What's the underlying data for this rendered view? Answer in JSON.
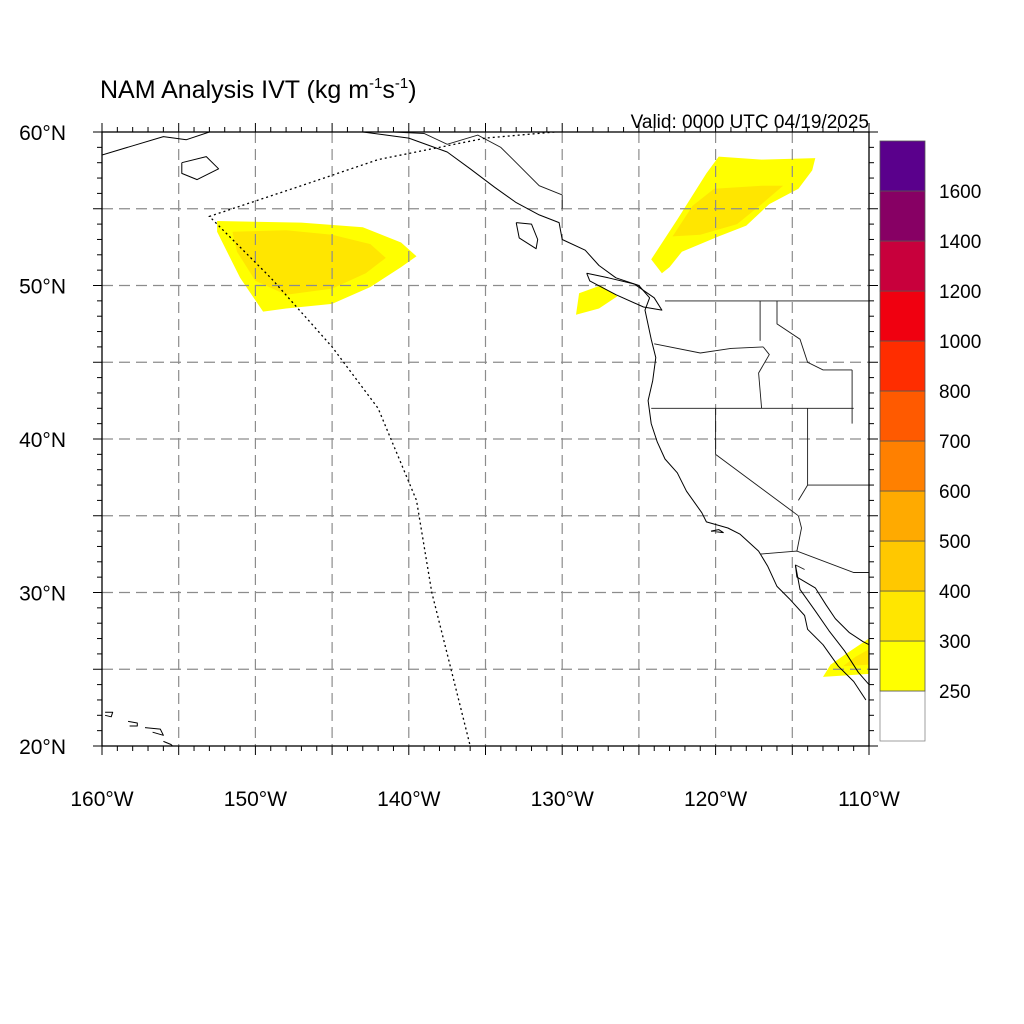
{
  "title": {
    "main": "NAM Analysis IVT (kg m",
    "sup1": "-1",
    "mid": "s",
    "sup2": "-1",
    "end": ")"
  },
  "valid_label": "Valid: 0000 UTC 04/19/2025",
  "map": {
    "lon_range": [
      -160,
      -110
    ],
    "lat_range": [
      20,
      60
    ],
    "lon_ticks": [
      {
        "lon": -160,
        "label": "160°W"
      },
      {
        "lon": -150,
        "label": "150°W"
      },
      {
        "lon": -140,
        "label": "140°W"
      },
      {
        "lon": -130,
        "label": "130°W"
      },
      {
        "lon": -120,
        "label": "120°W"
      },
      {
        "lon": -110,
        "label": "110°W"
      }
    ],
    "lat_ticks": [
      {
        "lat": 20,
        "label": "20°N"
      },
      {
        "lat": 30,
        "label": "30°N"
      },
      {
        "lat": 40,
        "label": "40°N"
      },
      {
        "lat": 50,
        "label": "50°N"
      },
      {
        "lat": 60,
        "label": "60°N"
      }
    ],
    "grid_lons": [
      -155,
      -150,
      -145,
      -140,
      -135,
      -130,
      -125,
      -120,
      -115
    ],
    "grid_lats": [
      25,
      30,
      35,
      40,
      45,
      50,
      55
    ],
    "gridlines": true
  },
  "colorbar": {
    "levels": [
      {
        "label": "250",
        "color": "#ffff00"
      },
      {
        "label": "300",
        "color": "#ffe600"
      },
      {
        "label": "400",
        "color": "#ffc800"
      },
      {
        "label": "500",
        "color": "#ffaa00"
      },
      {
        "label": "600",
        "color": "#ff8000"
      },
      {
        "label": "700",
        "color": "#ff5a00"
      },
      {
        "label": "800",
        "color": "#ff2d00"
      },
      {
        "label": "1000",
        "color": "#f00010"
      },
      {
        "label": "1200",
        "color": "#c8003c"
      },
      {
        "label": "1400",
        "color": "#870064"
      },
      {
        "label": "1600",
        "color": "#5a008c"
      }
    ],
    "below_color": "#ffffff"
  },
  "ivt_areas": [
    {
      "name": "northeast-pacific-plume",
      "level": 0,
      "poly": [
        [
          -152.5,
          54.2
        ],
        [
          -147,
          54.1
        ],
        [
          -143,
          53.8
        ],
        [
          -140.5,
          52.8
        ],
        [
          -139.5,
          51.9
        ],
        [
          -140.5,
          51.2
        ],
        [
          -142.5,
          49.9
        ],
        [
          -145,
          48.8
        ],
        [
          -148,
          48.5
        ],
        [
          -149.5,
          48.3
        ],
        [
          -151,
          50.5
        ],
        [
          -152.5,
          53.5
        ]
      ]
    },
    {
      "name": "northeast-pacific-plume-core",
      "level": 1,
      "poly": [
        [
          -151.5,
          53.5
        ],
        [
          -148,
          53.6
        ],
        [
          -145,
          53.3
        ],
        [
          -142.5,
          52.7
        ],
        [
          -141.5,
          51.8
        ],
        [
          -142.8,
          50.8
        ],
        [
          -145,
          49.8
        ],
        [
          -148,
          49.4
        ],
        [
          -150,
          50.3
        ],
        [
          -151.2,
          52.2
        ]
      ]
    },
    {
      "name": "bc-interior-plume",
      "level": 0,
      "poly": [
        [
          -124.2,
          51.7
        ],
        [
          -122.5,
          54.3
        ],
        [
          -120.6,
          57.3
        ],
        [
          -119.8,
          58.4
        ],
        [
          -117,
          58.2
        ],
        [
          -113.5,
          58.3
        ],
        [
          -113.7,
          57.5
        ],
        [
          -114.6,
          56.3
        ],
        [
          -116.5,
          55.3
        ],
        [
          -118,
          53.9
        ],
        [
          -119.8,
          53.2
        ],
        [
          -122.2,
          52.2
        ],
        [
          -123,
          51.2
        ],
        [
          -123.5,
          50.8
        ]
      ]
    },
    {
      "name": "bc-interior-plume-core",
      "level": 1,
      "poly": [
        [
          -122.8,
          53.2
        ],
        [
          -121.5,
          55.2
        ],
        [
          -120.1,
          56.3
        ],
        [
          -117,
          56.5
        ],
        [
          -115.6,
          56.5
        ],
        [
          -117,
          55.3
        ],
        [
          -118.6,
          54
        ],
        [
          -121,
          53.3
        ]
      ]
    },
    {
      "name": "vancouver-island-plume",
      "level": 0,
      "poly": [
        [
          -129.1,
          48.1
        ],
        [
          -127.6,
          48.5
        ],
        [
          -126.4,
          49.3
        ],
        [
          -127.5,
          50
        ],
        [
          -128.9,
          49.5
        ]
      ]
    },
    {
      "name": "gulf-california-plume",
      "level": 0,
      "poly": [
        [
          -113,
          24.5
        ],
        [
          -110,
          24.7
        ],
        [
          -110,
          27
        ],
        [
          -111.5,
          26
        ],
        [
          -112.5,
          25.3
        ]
      ]
    },
    {
      "name": "gulf-california-plume-core",
      "level": 1,
      "poly": [
        [
          -111.7,
          25.2
        ],
        [
          -110,
          25.3
        ],
        [
          -110,
          26.3
        ],
        [
          -110.9,
          25.8
        ]
      ]
    }
  ],
  "coastlines": [
    {
      "name": "north-america-west-coast",
      "pts": [
        [
          -148,
          60
        ],
        [
          -146,
          60.2
        ],
        [
          -143,
          60
        ],
        [
          -140,
          59.6
        ],
        [
          -137.5,
          58.7
        ],
        [
          -136,
          57.6
        ],
        [
          -134.4,
          56.4
        ],
        [
          -133,
          55.4
        ],
        [
          -131.5,
          54.6
        ],
        [
          -130.2,
          54.1
        ],
        [
          -130,
          53
        ],
        [
          -128.5,
          52.3
        ],
        [
          -127.6,
          51.3
        ],
        [
          -126.5,
          50.5
        ],
        [
          -125,
          50
        ],
        [
          -124.3,
          49.2
        ],
        [
          -124.6,
          48.4
        ],
        [
          -124.2,
          46.5
        ],
        [
          -123.9,
          45.3
        ],
        [
          -124.1,
          43.8
        ],
        [
          -124.4,
          42.5
        ],
        [
          -124.2,
          41
        ],
        [
          -123.8,
          39.8
        ],
        [
          -123.3,
          38.7
        ],
        [
          -122.5,
          37.8
        ],
        [
          -121.9,
          36.6
        ],
        [
          -120.9,
          35.2
        ],
        [
          -120.6,
          34.6
        ],
        [
          -119.2,
          34.2
        ],
        [
          -118.4,
          33.8
        ],
        [
          -117.2,
          32.7
        ],
        [
          -116.6,
          31.7
        ],
        [
          -116,
          30.4
        ],
        [
          -115.2,
          29.6
        ],
        [
          -114.2,
          28.5
        ],
        [
          -114,
          27.6
        ],
        [
          -113,
          26.6
        ],
        [
          -112,
          25.2
        ],
        [
          -111,
          24.2
        ],
        [
          -110.2,
          23
        ]
      ]
    },
    {
      "name": "gulf-of-california-east-coast",
      "pts": [
        [
          -114.8,
          31.8
        ],
        [
          -114.7,
          31
        ],
        [
          -113.5,
          30.3
        ],
        [
          -112.8,
          29.2
        ],
        [
          -112.2,
          28.3
        ],
        [
          -111.3,
          27.4
        ],
        [
          -110.4,
          26.8
        ],
        [
          -110,
          26.6
        ]
      ]
    },
    {
      "name": "baja-east-coast",
      "pts": [
        [
          -114.8,
          31.8
        ],
        [
          -114.5,
          30.2
        ],
        [
          -113.5,
          28.8
        ],
        [
          -112.6,
          27.5
        ],
        [
          -111.6,
          26.2
        ],
        [
          -110.7,
          24.8
        ],
        [
          -110,
          24
        ]
      ]
    },
    {
      "name": "alaska-peninsula",
      "pts": [
        [
          -160,
          58.5
        ],
        [
          -158,
          59.1
        ],
        [
          -156,
          59.7
        ],
        [
          -154.5,
          59.5
        ],
        [
          -153,
          60
        ]
      ]
    },
    {
      "name": "kodiak-island",
      "pts": [
        [
          -154.8,
          58
        ],
        [
          -153.2,
          58.4
        ],
        [
          -152.4,
          57.6
        ],
        [
          -153.8,
          56.9
        ],
        [
          -154.8,
          57.3
        ],
        [
          -154.8,
          58
        ]
      ]
    },
    {
      "name": "haida-gwaii",
      "pts": [
        [
          -133,
          54.1
        ],
        [
          -132,
          54
        ],
        [
          -131.6,
          53
        ],
        [
          -131.7,
          52.4
        ],
        [
          -132.8,
          53.1
        ],
        [
          -133,
          54.1
        ]
      ]
    },
    {
      "name": "vancouver-island",
      "pts": [
        [
          -128.4,
          50.8
        ],
        [
          -127,
          50.5
        ],
        [
          -125.3,
          50.1
        ],
        [
          -124,
          49.2
        ],
        [
          -123.5,
          48.4
        ],
        [
          -124.7,
          48.6
        ],
        [
          -126.5,
          49.4
        ],
        [
          -128.2,
          50.3
        ],
        [
          -128.4,
          50.8
        ]
      ]
    },
    {
      "name": "channel-islands",
      "pts": [
        [
          -120.3,
          34
        ],
        [
          -119.5,
          33.9
        ],
        [
          -119.8,
          34.1
        ],
        [
          -120.3,
          34
        ]
      ]
    },
    {
      "name": "hawaii-niihau-kauai",
      "pts": [
        [
          -159.8,
          22.2
        ],
        [
          -159.3,
          22.2
        ],
        [
          -159.4,
          21.9
        ],
        [
          -159.8,
          22
        ]
      ]
    },
    {
      "name": "hawaii-oahu",
      "pts": [
        [
          -158.3,
          21.6
        ],
        [
          -157.7,
          21.5
        ],
        [
          -157.7,
          21.3
        ],
        [
          -158.2,
          21.3
        ]
      ]
    },
    {
      "name": "hawaii-molokai-maui",
      "pts": [
        [
          -157.2,
          21.2
        ],
        [
          -156.2,
          21.1
        ],
        [
          -156,
          20.7
        ],
        [
          -156.7,
          20.9
        ]
      ]
    },
    {
      "name": "hawaii-big-island",
      "pts": [
        [
          -156,
          20.3
        ],
        [
          -155.5,
          20.1
        ],
        [
          -155.1,
          19.7
        ],
        [
          -154.8,
          19.5
        ],
        [
          -155.6,
          19
        ],
        [
          -156,
          19.6
        ]
      ]
    }
  ],
  "borders": [
    {
      "name": "us-canada-border",
      "pts": [
        [
          -123.3,
          49
        ],
        [
          -110,
          49
        ]
      ]
    },
    {
      "name": "alaska-canada-border",
      "pts": [
        [
          -141,
          60
        ],
        [
          -139,
          59.9
        ],
        [
          -137.5,
          59.2
        ],
        [
          -135.5,
          59.8
        ],
        [
          -134,
          59
        ],
        [
          -133.2,
          58.2
        ],
        [
          -131.5,
          56.5
        ],
        [
          -130,
          55.9
        ],
        [
          -130,
          55
        ]
      ]
    },
    {
      "name": "us-mexico-border",
      "pts": [
        [
          -117.1,
          32.5
        ],
        [
          -114.7,
          32.7
        ],
        [
          -111,
          31.3
        ],
        [
          -110,
          31.3
        ]
      ]
    },
    {
      "name": "washington-oregon-border",
      "pts": [
        [
          -124,
          46.2
        ],
        [
          -121,
          45.6
        ],
        [
          -119,
          45.9
        ],
        [
          -116.9,
          46
        ]
      ]
    },
    {
      "name": "oregon-idaho-border",
      "pts": [
        [
          -116.9,
          46
        ],
        [
          -116.5,
          45.5
        ],
        [
          -117.2,
          44.3
        ],
        [
          -117,
          42
        ]
      ]
    },
    {
      "name": "washington-idaho-border",
      "pts": [
        [
          -117.1,
          49
        ],
        [
          -117.1,
          46.4
        ]
      ]
    },
    {
      "name": "idaho-montana-border",
      "pts": [
        [
          -116,
          49
        ],
        [
          -116,
          47.5
        ],
        [
          -114.5,
          46.5
        ],
        [
          -114,
          45
        ],
        [
          -113,
          44.5
        ],
        [
          -111.1,
          44.5
        ]
      ]
    },
    {
      "name": "oregon-california-border",
      "pts": [
        [
          -124.2,
          42
        ],
        [
          -111,
          42
        ]
      ]
    },
    {
      "name": "california-nevada-border",
      "pts": [
        [
          -120,
          42
        ],
        [
          -120,
          39
        ],
        [
          -114.6,
          35
        ]
      ]
    },
    {
      "name": "nevada-utah-border",
      "pts": [
        [
          -114,
          42
        ],
        [
          -114,
          37
        ],
        [
          -114.6,
          36
        ]
      ]
    },
    {
      "name": "utah-arizona-border",
      "pts": [
        [
          -114,
          37
        ],
        [
          -110,
          37
        ]
      ]
    },
    {
      "name": "arizona-california-border",
      "pts": [
        [
          -114.6,
          35
        ],
        [
          -114.4,
          34.2
        ],
        [
          -114.7,
          32.7
        ]
      ]
    },
    {
      "name": "idaho-wyoming-border",
      "pts": [
        [
          -111.1,
          44.5
        ],
        [
          -111.1,
          41
        ]
      ]
    },
    {
      "name": "sonora-baja-border",
      "pts": [
        [
          -114.8,
          31.8
        ],
        [
          -114.2,
          31.5
        ]
      ]
    }
  ],
  "dateline_boundary": [
    [
      -130.5,
      60
    ],
    [
      -135,
      59.6
    ],
    [
      -142,
      58.2
    ],
    [
      -147,
      56.5
    ],
    [
      -153,
      54.5
    ],
    [
      -149,
      50.5
    ],
    [
      -145,
      46
    ],
    [
      -142,
      42
    ],
    [
      -139.5,
      36
    ],
    [
      -138.5,
      30
    ],
    [
      -137.5,
      26
    ],
    [
      -136,
      20
    ]
  ]
}
